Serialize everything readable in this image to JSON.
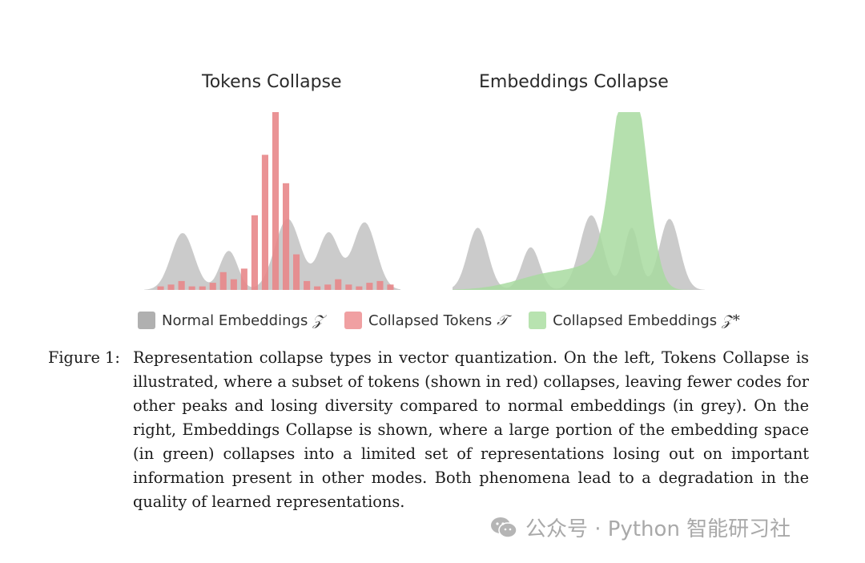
{
  "chart_data": [
    {
      "type": "area+bar",
      "title": "Tokens Collapse",
      "series": [
        {
          "name": "Normal Embeddings 𝒵",
          "color": "#c8c8c8",
          "peaks": [
            {
              "center": 0.15,
              "height": 0.32,
              "width": 0.045
            },
            {
              "center": 0.33,
              "height": 0.22,
              "width": 0.035
            },
            {
              "center": 0.56,
              "height": 0.4,
              "width": 0.05
            },
            {
              "center": 0.72,
              "height": 0.32,
              "width": 0.04
            },
            {
              "center": 0.86,
              "height": 0.38,
              "width": 0.045
            }
          ]
        },
        {
          "name": "Collapsed Tokens 𝒯",
          "color": "#e8878a",
          "values": [
            0.02,
            0.03,
            0.05,
            0.02,
            0.02,
            0.04,
            0.1,
            0.06,
            0.12,
            0.42,
            0.76,
            1.0,
            0.6,
            0.2,
            0.05,
            0.02,
            0.03,
            0.06,
            0.03,
            0.02,
            0.04,
            0.05,
            0.03
          ]
        }
      ],
      "ylim": [
        0,
        1
      ]
    },
    {
      "type": "area",
      "title": "Embeddings Collapse",
      "series": [
        {
          "name": "Normal Embeddings 𝒵",
          "color": "#c8c8c8",
          "peaks": [
            {
              "center": 0.1,
              "height": 0.35,
              "width": 0.04
            },
            {
              "center": 0.31,
              "height": 0.24,
              "width": 0.035
            },
            {
              "center": 0.55,
              "height": 0.42,
              "width": 0.045
            },
            {
              "center": 0.71,
              "height": 0.35,
              "width": 0.03
            },
            {
              "center": 0.86,
              "height": 0.4,
              "width": 0.04
            }
          ]
        },
        {
          "name": "Collapsed Embeddings 𝒵*",
          "color": "#a8dba0",
          "peaks": [
            {
              "center": 0.42,
              "height": 0.1,
              "width": 0.15
            },
            {
              "center": 0.66,
              "height": 0.62,
              "width": 0.045
            },
            {
              "center": 0.73,
              "height": 0.92,
              "width": 0.05
            },
            {
              "center": 0.6,
              "height": 0.1,
              "width": 0.08
            }
          ]
        }
      ],
      "ylim": [
        0,
        1
      ]
    }
  ],
  "legend": [
    {
      "label": "Normal Embeddings",
      "symbol": "𝒵",
      "color": "#b0b0b0"
    },
    {
      "label": "Collapsed Tokens",
      "symbol": "𝒯",
      "color": "#f0a0a2"
    },
    {
      "label": "Collapsed Embeddings",
      "symbol": "𝒵*",
      "color": "#b8e3b0"
    }
  ],
  "caption": {
    "label": "Figure 1:",
    "text": "Representation collapse types in vector quantization. On the left, Tokens Collapse is illustrated, where a subset of tokens (shown in red) collapses, leaving fewer codes for other peaks and losing diversity compared to normal embeddings (in grey). On the right, Embeddings Collapse is shown, where a large portion of the embedding space (in green) collapses into a limited set of representations losing out on important information present in other modes. Both phenomena lead to a degradation in the quality of learned representations."
  },
  "watermark": {
    "text": "公众号 · Python 智能研习社"
  }
}
